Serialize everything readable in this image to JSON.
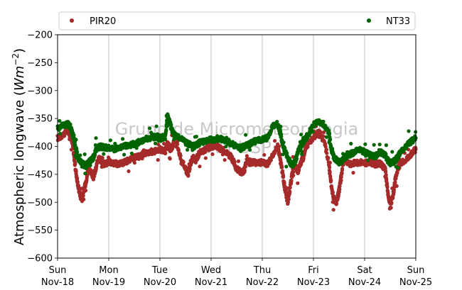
{
  "chart_data": {
    "type": "scatter",
    "title": "",
    "ylabel": "Atmospheric longwave (Wm⁻²)",
    "ylabel_parts": {
      "main": "Atmospheric longwave (",
      "unit": "Wm",
      "exp": "−2",
      "close": ")"
    },
    "ylim": [
      -600,
      -200
    ],
    "yticks": [
      -200,
      -250,
      -300,
      -350,
      -400,
      -450,
      -500,
      -550,
      -600
    ],
    "ytick_labels": [
      "−200",
      "−250",
      "−300",
      "−350",
      "−400",
      "−450",
      "−500",
      "−550",
      "−600"
    ],
    "xlim": [
      0,
      7
    ],
    "xticks": [
      {
        "x": 0,
        "line1": "Sun",
        "line2": "Nov-18"
      },
      {
        "x": 1,
        "line1": "Mon",
        "line2": "Nov-19"
      },
      {
        "x": 2,
        "line1": "Tue",
        "line2": "Nov-20"
      },
      {
        "x": 3,
        "line1": "Wed",
        "line2": "Nov-21"
      },
      {
        "x": 4,
        "line1": "Thu",
        "line2": "Nov-22"
      },
      {
        "x": 5,
        "line1": "Fri",
        "line2": "Nov-23"
      },
      {
        "x": 6,
        "line1": "Sat",
        "line2": "Nov-24"
      },
      {
        "x": 7,
        "line1": "Sun",
        "line2": "Nov-25"
      }
    ],
    "grid": "vertical",
    "legend_position": "top",
    "watermark": [
      "Grupo de Micrometeorologia",
      "IAG-USP"
    ],
    "series": [
      {
        "name": "PIR20",
        "color": "#a52a2a",
        "x": [
          0.0,
          0.1,
          0.2,
          0.25,
          0.3,
          0.35,
          0.4,
          0.45,
          0.5,
          0.55,
          0.6,
          0.65,
          0.7,
          0.75,
          0.8,
          0.85,
          0.9,
          1.0,
          1.1,
          1.2,
          1.3,
          1.4,
          1.5,
          1.6,
          1.7,
          1.8,
          1.9,
          2.0,
          2.1,
          2.15,
          2.2,
          2.25,
          2.3,
          2.4,
          2.5,
          2.55,
          2.6,
          2.65,
          2.7,
          2.75,
          2.8,
          2.9,
          3.0,
          3.1,
          3.2,
          3.3,
          3.4,
          3.5,
          3.6,
          3.65,
          3.7,
          3.75,
          3.8,
          3.9,
          4.0,
          4.1,
          4.2,
          4.3,
          4.35,
          4.4,
          4.45,
          4.5,
          4.55,
          4.6,
          4.65,
          4.7,
          4.75,
          4.8,
          4.85,
          4.9,
          5.0,
          5.1,
          5.2,
          5.3,
          5.35,
          5.4,
          5.45,
          5.5,
          5.55,
          5.6,
          5.7,
          5.8,
          5.9,
          6.0,
          6.1,
          6.2,
          6.3,
          6.4,
          6.45,
          6.5,
          6.55,
          6.6,
          6.65,
          6.7,
          6.8,
          6.9,
          7.0
        ],
        "y": [
          -385,
          -380,
          -372,
          -378,
          -400,
          -440,
          -470,
          -490,
          -485,
          -465,
          -440,
          -445,
          -455,
          -440,
          -420,
          -425,
          -432,
          -428,
          -430,
          -432,
          -428,
          -425,
          -420,
          -418,
          -412,
          -410,
          -408,
          -405,
          -410,
          -395,
          -405,
          -400,
          -380,
          -420,
          -440,
          -450,
          -430,
          -420,
          -425,
          -415,
          -410,
          -405,
          -400,
          -400,
          -405,
          -410,
          -420,
          -440,
          -448,
          -442,
          -425,
          -430,
          -428,
          -430,
          -428,
          -432,
          -415,
          -400,
          -420,
          -450,
          -480,
          -500,
          -470,
          -440,
          -435,
          -445,
          -430,
          -420,
          -400,
          -395,
          -385,
          -375,
          -385,
          -430,
          -470,
          -495,
          -500,
          -480,
          -450,
          -420,
          -432,
          -430,
          -428,
          -430,
          -428,
          -432,
          -430,
          -440,
          -480,
          -505,
          -490,
          -460,
          -440,
          -430,
          -425,
          -415,
          -405
        ]
      },
      {
        "name": "NT33",
        "color": "#006400",
        "x": [
          0.0,
          0.1,
          0.2,
          0.25,
          0.3,
          0.35,
          0.4,
          0.45,
          0.5,
          0.55,
          0.6,
          0.65,
          0.7,
          0.75,
          0.8,
          0.85,
          0.9,
          1.0,
          1.1,
          1.2,
          1.3,
          1.4,
          1.5,
          1.6,
          1.7,
          1.8,
          1.9,
          2.0,
          2.1,
          2.15,
          2.2,
          2.25,
          2.3,
          2.4,
          2.5,
          2.55,
          2.6,
          2.65,
          2.7,
          2.75,
          2.8,
          2.9,
          3.0,
          3.1,
          3.2,
          3.3,
          3.4,
          3.5,
          3.6,
          3.65,
          3.7,
          3.75,
          3.8,
          3.9,
          4.0,
          4.1,
          4.2,
          4.3,
          4.35,
          4.4,
          4.45,
          4.5,
          4.55,
          4.6,
          4.65,
          4.7,
          4.75,
          4.8,
          4.85,
          4.9,
          5.0,
          5.1,
          5.2,
          5.3,
          5.35,
          5.4,
          5.45,
          5.5,
          5.55,
          5.6,
          5.7,
          5.8,
          5.9,
          6.0,
          6.1,
          6.2,
          6.3,
          6.4,
          6.45,
          6.5,
          6.55,
          6.6,
          6.65,
          6.7,
          6.8,
          6.9,
          7.0
        ],
        "y": [
          -368,
          -362,
          -360,
          -365,
          -380,
          -400,
          -420,
          -428,
          -432,
          -434,
          -430,
          -425,
          -420,
          -405,
          -402,
          -400,
          -402,
          -403,
          -405,
          -402,
          -400,
          -398,
          -395,
          -392,
          -388,
          -385,
          -383,
          -382,
          -385,
          -345,
          -360,
          -375,
          -380,
          -385,
          -392,
          -395,
          -398,
          -400,
          -398,
          -395,
          -392,
          -390,
          -388,
          -386,
          -387,
          -390,
          -395,
          -400,
          -402,
          -400,
          -398,
          -396,
          -392,
          -390,
          -388,
          -385,
          -365,
          -360,
          -375,
          -395,
          -410,
          -420,
          -430,
          -432,
          -425,
          -410,
          -400,
          -392,
          -385,
          -378,
          -362,
          -356,
          -360,
          -375,
          -405,
          -420,
          -425,
          -428,
          -426,
          -420,
          -415,
          -410,
          -405,
          -410,
          -415,
          -418,
          -410,
          -415,
          -425,
          -430,
          -428,
          -425,
          -418,
          -410,
          -400,
          -392,
          -385
        ]
      }
    ]
  }
}
